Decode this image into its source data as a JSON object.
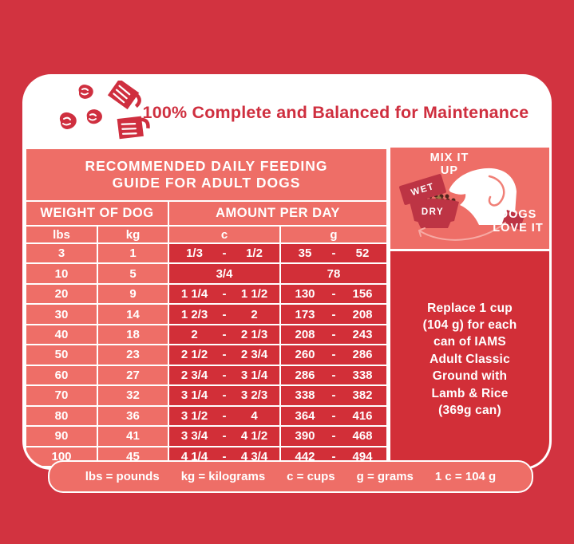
{
  "colors": {
    "page_background": "#d23340",
    "card_background": "#ffffff",
    "salmon_panel": "#ee6e67",
    "dark_red_panel": "#d22f38",
    "crimson_text": "#cf2f3f",
    "tag_red": "#bd3444",
    "kibble_brown": "#4e241d",
    "kibble_tan": "#9d7b45",
    "white_text": "#ffffff"
  },
  "header": {
    "title": "100% Complete and Balanced for Maintenance",
    "icon": "kibble-and-measuring-cups-icon"
  },
  "guide": {
    "title": "RECOMMENDED DAILY FEEDING\nGUIDE FOR ADULT DOGS"
  },
  "table": {
    "group_headers": [
      {
        "label": "WEIGHT OF DOG"
      },
      {
        "label": "AMOUNT PER DAY"
      }
    ],
    "columns": [
      "lbs",
      "kg",
      "c",
      "g"
    ],
    "range_separator": "-",
    "rows": [
      {
        "lbs": "3",
        "kg": "1",
        "c": [
          "1/3",
          "1/2"
        ],
        "g": [
          "35",
          "52"
        ]
      },
      {
        "lbs": "10",
        "kg": "5",
        "c": [
          "3/4"
        ],
        "g": [
          "78"
        ]
      },
      {
        "lbs": "20",
        "kg": "9",
        "c": [
          "1 1/4",
          "1 1/2"
        ],
        "g": [
          "130",
          "156"
        ]
      },
      {
        "lbs": "30",
        "kg": "14",
        "c": [
          "1 2/3",
          "2"
        ],
        "g": [
          "173",
          "208"
        ]
      },
      {
        "lbs": "40",
        "kg": "18",
        "c": [
          "2",
          "2 1/3"
        ],
        "g": [
          "208",
          "243"
        ]
      },
      {
        "lbs": "50",
        "kg": "23",
        "c": [
          "2 1/2",
          "2 3/4"
        ],
        "g": [
          "260",
          "286"
        ]
      },
      {
        "lbs": "60",
        "kg": "27",
        "c": [
          "2 3/4",
          "3 1/4"
        ],
        "g": [
          "286",
          "338"
        ]
      },
      {
        "lbs": "70",
        "kg": "32",
        "c": [
          "3 1/4",
          "3 2/3"
        ],
        "g": [
          "338",
          "382"
        ]
      },
      {
        "lbs": "80",
        "kg": "36",
        "c": [
          "3 1/2",
          "4"
        ],
        "g": [
          "364",
          "416"
        ]
      },
      {
        "lbs": "90",
        "kg": "41",
        "c": [
          "3 3/4",
          "4 1/2"
        ],
        "g": [
          "390",
          "468"
        ]
      },
      {
        "lbs": "100",
        "kg": "45",
        "c": [
          "4 1/4",
          "4 3/4"
        ],
        "g": [
          "442",
          "494"
        ]
      }
    ]
  },
  "mix_panel": {
    "headline": "MIX IT\nUP",
    "wet_label": "WET",
    "dry_label": "DRY",
    "tagline": "DOGS\nLOVE IT"
  },
  "replace_note": "Replace 1 cup\n(104 g) for each\ncan of IAMS\nAdult Classic\nGround with\nLamb & Rice\n(369g can)",
  "footer": {
    "items": [
      "lbs = pounds",
      "kg = kilograms",
      "c = cups",
      "g = grams",
      "1 c = 104 g"
    ]
  }
}
